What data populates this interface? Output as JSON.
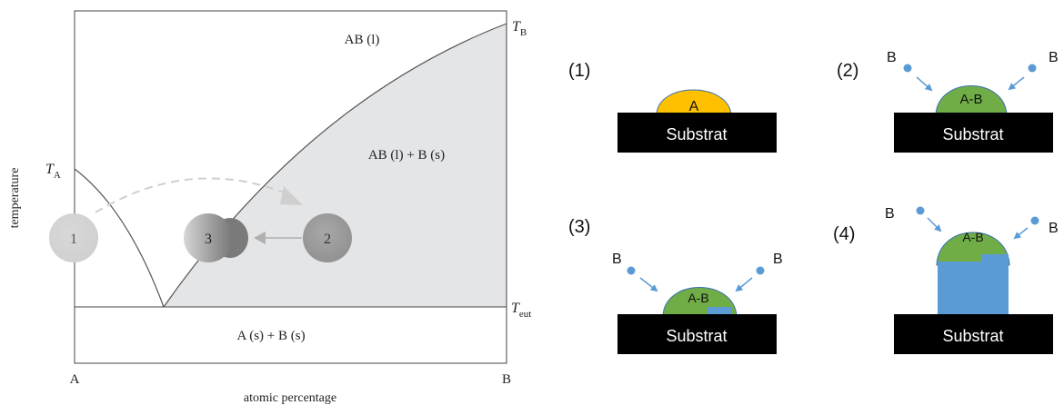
{
  "phase_diagram": {
    "regions": {
      "liquid": "AB (l)",
      "liquid_solid": "AB (l) + B (s)",
      "solid_solid": "A (s) + B (s)"
    },
    "temperatures": {
      "ta_main": "T",
      "ta_sub": "A",
      "tb_main": "T",
      "tb_sub": "B",
      "teut_main": "T",
      "teut_sub": "eut"
    },
    "axes": {
      "x_label": "atomic percentage",
      "y_label": "temperature",
      "x_left": "A",
      "x_right": "B"
    },
    "droplets": {
      "d1": "1",
      "d2": "2",
      "d3": "3"
    }
  },
  "growth_steps": {
    "substrate_label": "Substrat",
    "source_label": "B",
    "steps": [
      {
        "number": "(1)",
        "droplet": "A"
      },
      {
        "number": "(2)",
        "droplet": "A-B"
      },
      {
        "number": "(3)",
        "droplet": "A-B"
      },
      {
        "number": "(4)",
        "droplet": "A-B"
      }
    ]
  },
  "colors": {
    "gold_droplet": "#FFC000",
    "green_droplet": "#70AD47",
    "blue_crystal": "#5B9BD5",
    "substrate": "#000000",
    "shaded_region": "#E4E5E7"
  }
}
